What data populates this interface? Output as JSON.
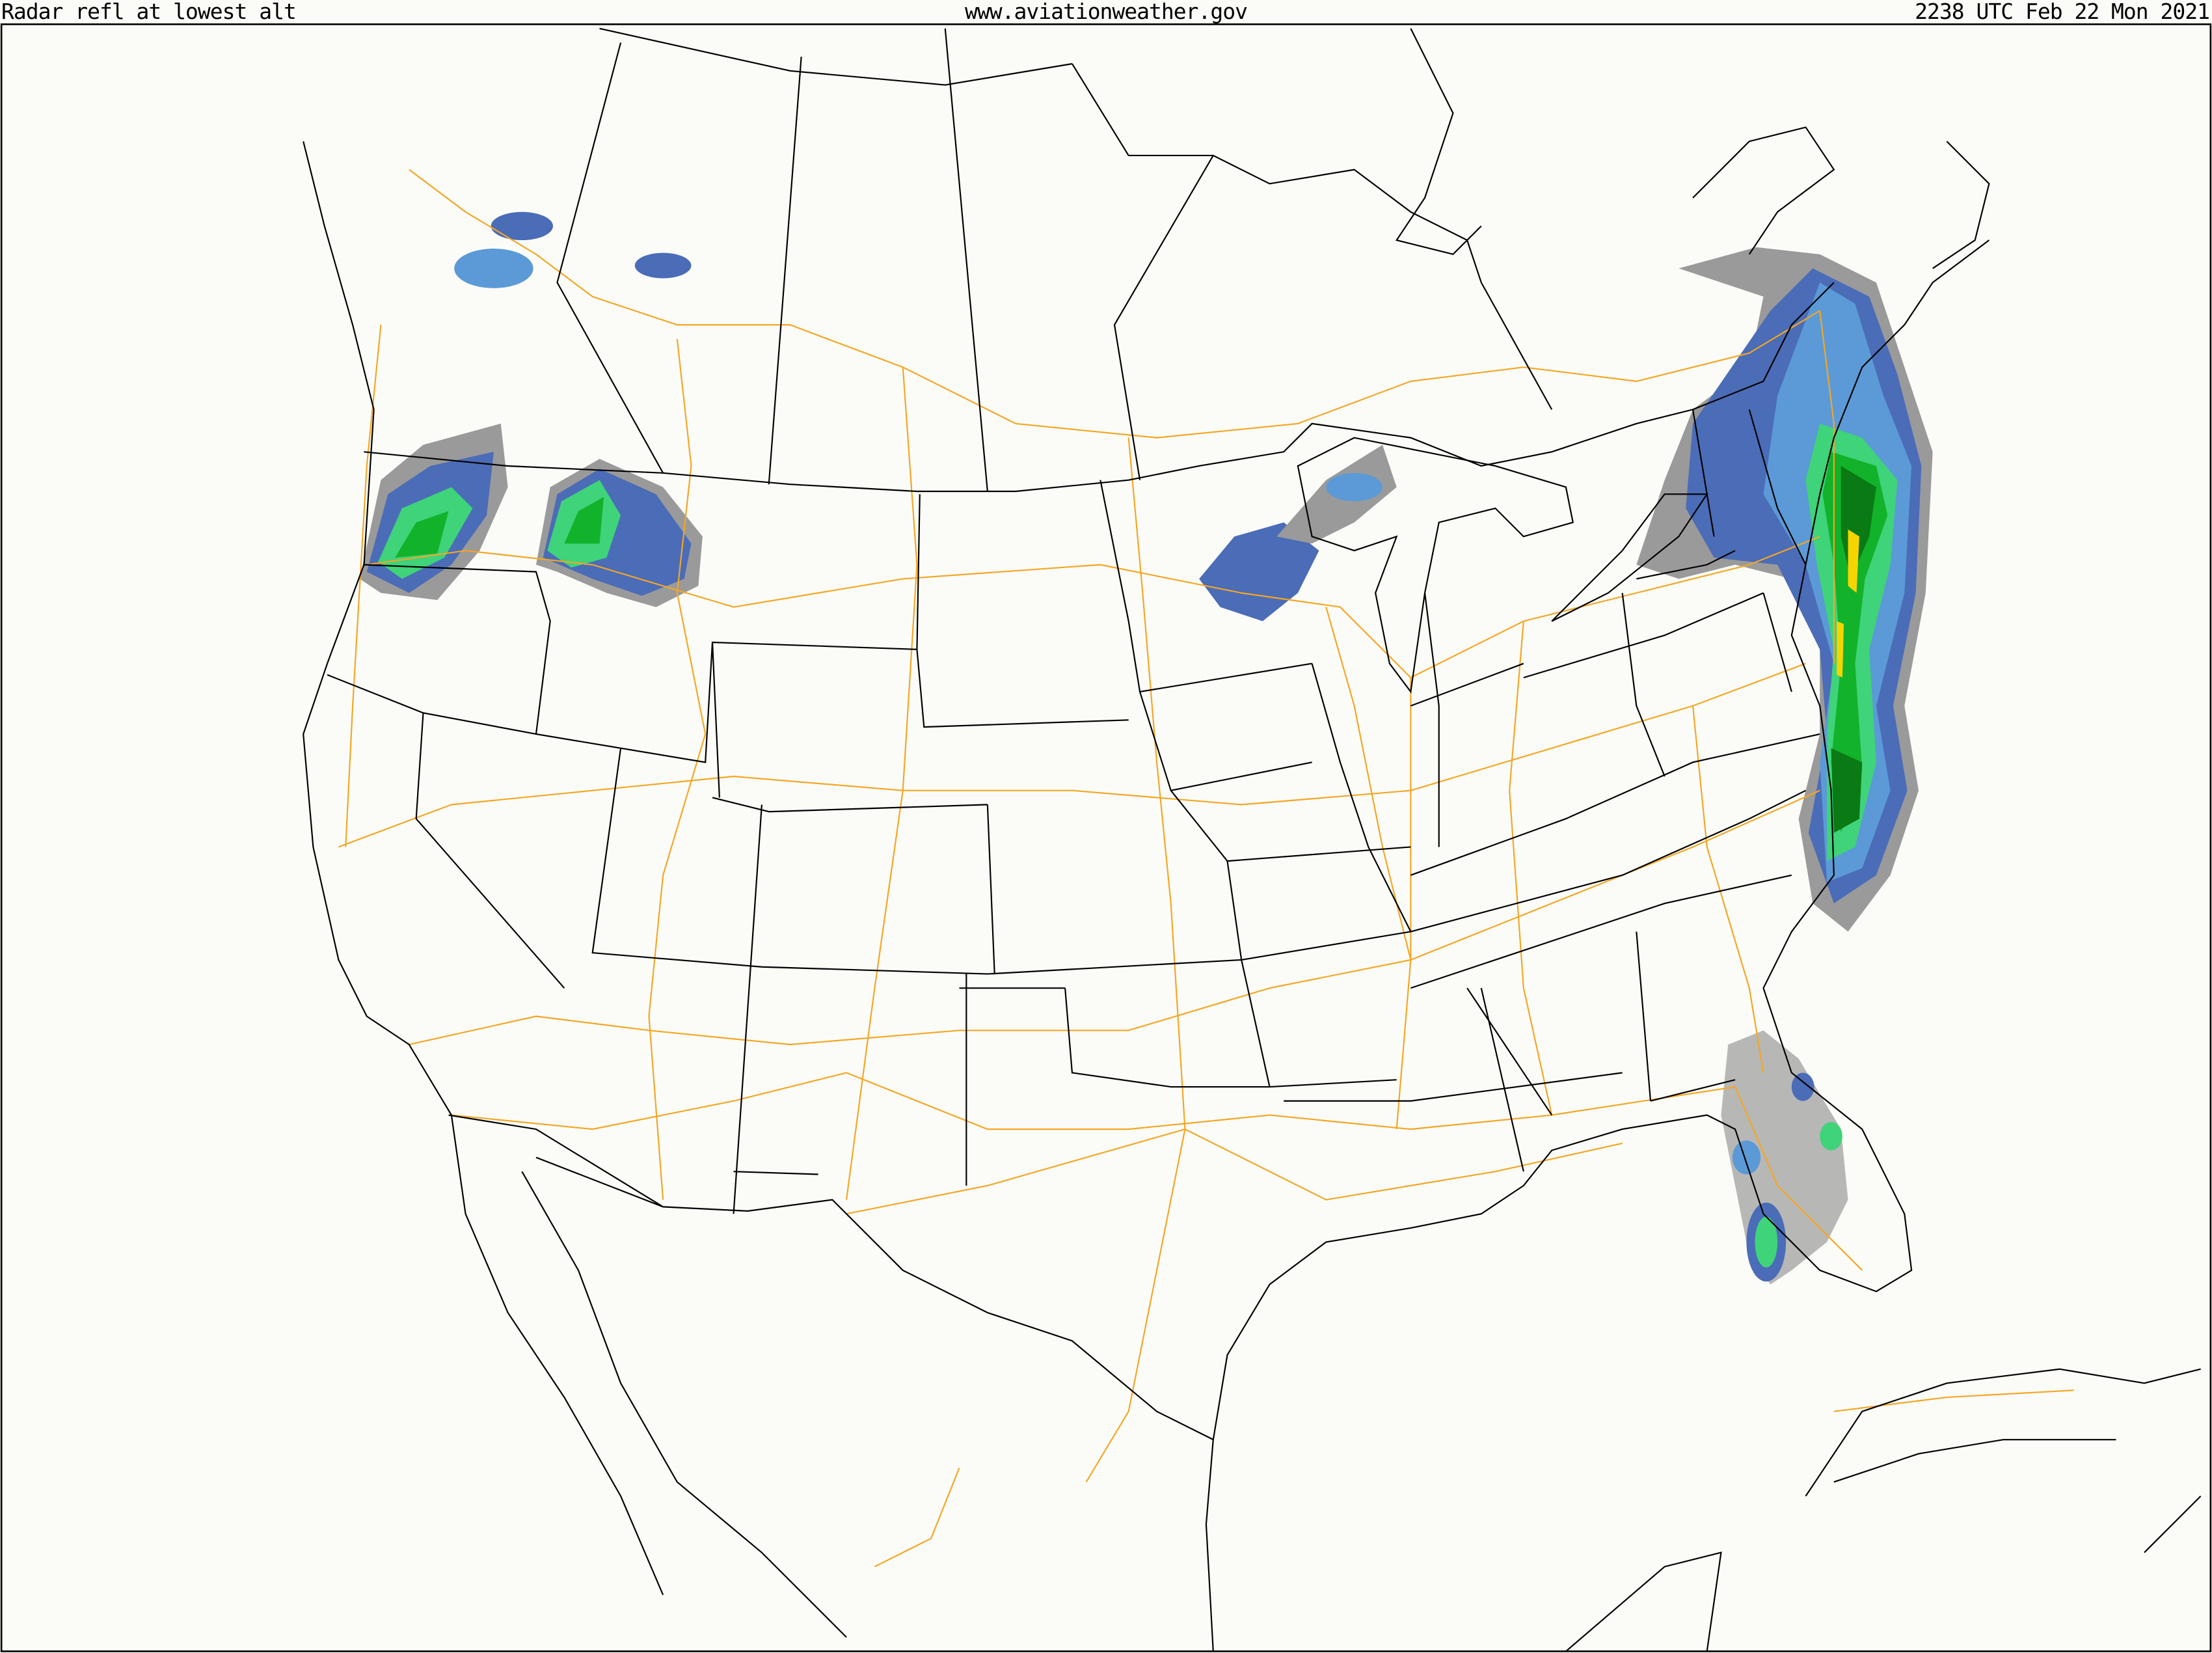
{
  "header": {
    "product": "Radar refl at lowest alt",
    "site": "www.aviationweather.gov",
    "valid_time": "2238 UTC Feb 22 Mon 2021"
  },
  "colors": {
    "background": "#fbfcf8",
    "boundaries": "#000000",
    "highways": "#f5a623",
    "radar_light": "#9a9a9a",
    "radar_blue_dark": "#4b6cb7",
    "radar_blue": "#5b9ad6",
    "radar_green_light": "#3fd37a",
    "radar_green": "#12b22a",
    "radar_green_dark": "#0a7a14",
    "radar_yellow": "#f6d400"
  }
}
